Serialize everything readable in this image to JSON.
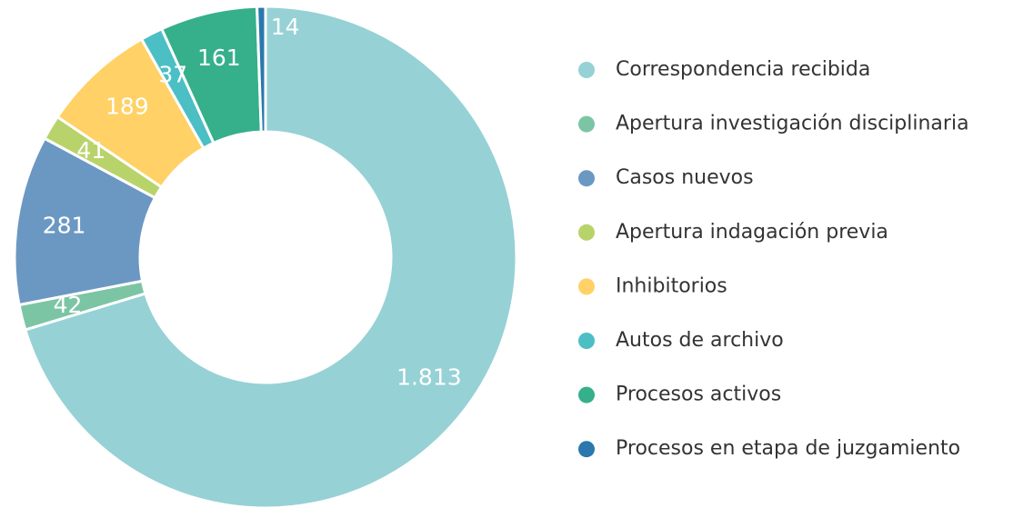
{
  "chart_data": {
    "type": "donut",
    "categories": [
      "Correspondencia recibida",
      "Apertura investigación disciplinaria",
      "Casos nuevos",
      "Apertura indagación previa",
      "Inhibitorios",
      "Autos de archivo",
      "Procesos activos",
      "Procesos en etapa de juzgamiento"
    ],
    "values": [
      1813,
      42,
      281,
      41,
      189,
      37,
      161,
      14
    ],
    "value_labels": [
      "1.813",
      "42",
      "281",
      "41",
      "189",
      "37",
      "161",
      "14"
    ],
    "colors": [
      "#96d1d5",
      "#7cc5a4",
      "#6b98c2",
      "#b9d36b",
      "#ffd166",
      "#4cbfc5",
      "#35b08a",
      "#2a78ad"
    ],
    "legend": "right"
  }
}
